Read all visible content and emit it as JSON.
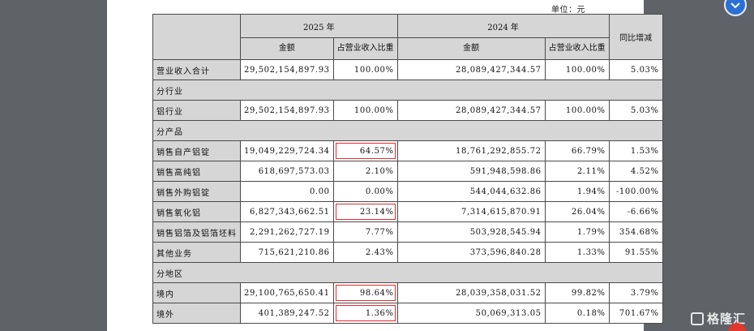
{
  "unit_label": "单位：元",
  "headers": {
    "year_2025": "2025 年",
    "year_2024": "2024 年",
    "yoy": "同比增减",
    "amount": "金额",
    "share": "占营业收入比重"
  },
  "rows": [
    {
      "label": "营业收入合计",
      "a2025": "29,502,154,897.93",
      "s2025": "100.00%",
      "a2024": "28,089,427,344.57",
      "s2024": "100.00%",
      "yoy": "5.03%"
    },
    {
      "section": "分行业"
    },
    {
      "label": "铝行业",
      "a2025": "29,502,154,897.93",
      "s2025": "100.00%",
      "a2024": "28,089,427,344.57",
      "s2024": "100.00%",
      "yoy": "5.03%"
    },
    {
      "section": "分产品"
    },
    {
      "label": "销售自产铝锭",
      "a2025": "19,049,229,724.34",
      "s2025": "64.57%",
      "a2024": "18,761,292,855.72",
      "s2024": "66.79%",
      "yoy": "1.53%",
      "highlight": true
    },
    {
      "label": "销售高纯铝",
      "a2025": "618,697,573.03",
      "s2025": "2.10%",
      "a2024": "591,948,598.86",
      "s2024": "2.11%",
      "yoy": "4.52%"
    },
    {
      "label": "销售外购铝锭",
      "a2025": "0.00",
      "s2025": "0.00%",
      "a2024": "544,044,632.86",
      "s2024": "1.94%",
      "yoy": "-100.00%"
    },
    {
      "label": "销售氧化铝",
      "a2025": "6,827,343,662.51",
      "s2025": "23.14%",
      "a2024": "7,314,615,870.91",
      "s2024": "26.04%",
      "yoy": "-6.66%",
      "highlight": true
    },
    {
      "label": "销售铝箔及铝箔坯料",
      "a2025": "2,291,262,727.19",
      "s2025": "7.77%",
      "a2024": "503,928,545.94",
      "s2024": "1.79%",
      "yoy": "354.68%"
    },
    {
      "label": "其他业务",
      "a2025": "715,621,210.86",
      "s2025": "2.43%",
      "a2024": "373,596,840.28",
      "s2024": "1.33%",
      "yoy": "91.55%"
    },
    {
      "section": "分地区"
    },
    {
      "label": "境内",
      "a2025": "29,100,765,650.41",
      "s2025": "98.64%",
      "a2024": "28,039,358,031.52",
      "s2024": "99.82%",
      "yoy": "3.79%",
      "highlight": true
    },
    {
      "label": "境外",
      "a2025": "401,389,247.52",
      "s2025": "1.36%",
      "a2024": "50,069,313.05",
      "s2024": "0.18%",
      "yoy": "701.67%",
      "highlight": true
    }
  ],
  "watermark": "格隆汇",
  "icons": {
    "top_right": "scroll-icon",
    "watermark_logo": "gelonghui-logo-icon"
  }
}
